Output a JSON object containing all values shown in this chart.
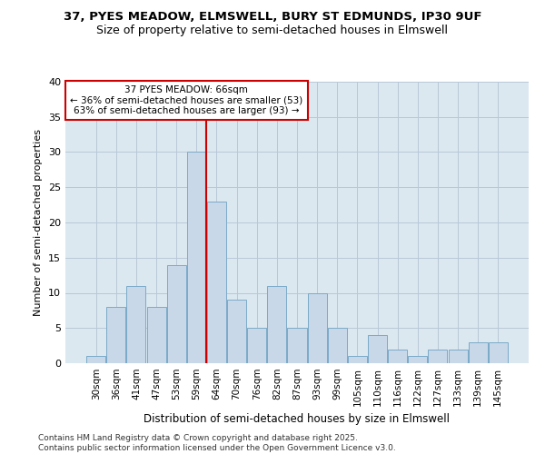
{
  "title_line1": "37, PYES MEADOW, ELMSWELL, BURY ST EDMUNDS, IP30 9UF",
  "title_line2": "Size of property relative to semi-detached houses in Elmswell",
  "xlabel": "Distribution of semi-detached houses by size in Elmswell",
  "ylabel": "Number of semi-detached properties",
  "footer_line1": "Contains HM Land Registry data © Crown copyright and database right 2025.",
  "footer_line2": "Contains public sector information licensed under the Open Government Licence v3.0.",
  "categories": [
    "30sqm",
    "36sqm",
    "41sqm",
    "47sqm",
    "53sqm",
    "59sqm",
    "64sqm",
    "70sqm",
    "76sqm",
    "82sqm",
    "87sqm",
    "93sqm",
    "99sqm",
    "105sqm",
    "110sqm",
    "116sqm",
    "122sqm",
    "127sqm",
    "133sqm",
    "139sqm",
    "145sqm"
  ],
  "values": [
    1,
    8,
    11,
    8,
    14,
    30,
    23,
    9,
    5,
    11,
    5,
    10,
    5,
    1,
    4,
    2,
    1,
    2,
    2,
    3,
    3
  ],
  "bar_color": "#c8d8e8",
  "bar_edge_color": "#7aaac8",
  "grid_color": "#b8c8d8",
  "background_color": "#dce8f0",
  "annotation_line1": "37 PYES MEADOW: 66sqm",
  "annotation_line2": "← 36% of semi-detached houses are smaller (53)",
  "annotation_line3": "63% of semi-detached houses are larger (93) →",
  "annotation_box_color": "#ffffff",
  "annotation_border_color": "#cc0000",
  "vline_x_index": 6,
  "vline_color": "#cc0000",
  "ylim": [
    0,
    40
  ],
  "yticks": [
    0,
    5,
    10,
    15,
    20,
    25,
    30,
    35,
    40
  ],
  "title_fontsize": 9.5,
  "subtitle_fontsize": 9,
  "ylabel_fontsize": 8,
  "xlabel_fontsize": 8.5,
  "tick_fontsize": 8,
  "xtick_fontsize": 7.5,
  "footer_fontsize": 6.5
}
